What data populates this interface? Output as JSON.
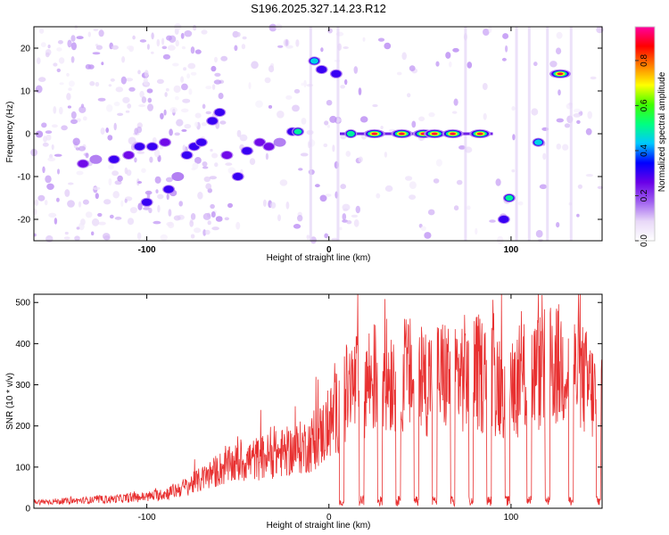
{
  "title": "S196.2025.327.14.23.R12",
  "chart_data": [
    {
      "type": "heatmap",
      "name": "spectrogram",
      "xlabel": "Height of straight line (km)",
      "ylabel": "Frequency (Hz)",
      "xlim": [
        -162,
        150
      ],
      "ylim": [
        -25,
        25
      ],
      "xticks": [
        -100,
        0,
        100
      ],
      "xtick_labels": [
        "-100",
        "0",
        "100"
      ],
      "yticks": [
        -20,
        -10,
        0,
        10,
        20
      ],
      "ytick_labels": [
        "-20",
        "-10",
        "0",
        "10",
        "20"
      ],
      "colorbar": {
        "label": "Normalized spectral amplitude",
        "range": [
          0.0,
          0.95
        ],
        "ticks": [
          0.0,
          0.2,
          0.4,
          0.6,
          0.8
        ],
        "tick_labels": [
          "0.0",
          "0.2",
          "0.4",
          "0.6",
          "0.8"
        ],
        "colormap": [
          "#ffffff",
          "#e8d8f8",
          "#a060f0",
          "#6a00e8",
          "#0000ff",
          "#00c8ff",
          "#00ff80",
          "#40ff00",
          "#ffff00",
          "#ff8000",
          "#ff0000",
          "#ff00a0"
        ]
      },
      "features": [
        {
          "x": -135,
          "y": -7,
          "v": 0.25
        },
        {
          "x": -128,
          "y": -6,
          "v": 0.2
        },
        {
          "x": -118,
          "y": -6,
          "v": 0.3
        },
        {
          "x": -110,
          "y": -5,
          "v": 0.25
        },
        {
          "x": -104,
          "y": -3,
          "v": 0.3
        },
        {
          "x": -97,
          "y": -3,
          "v": 0.3
        },
        {
          "x": -90,
          "y": -2,
          "v": 0.25
        },
        {
          "x": -100,
          "y": -16,
          "v": 0.3
        },
        {
          "x": -88,
          "y": -13,
          "v": 0.35
        },
        {
          "x": -83,
          "y": -10,
          "v": 0.2
        },
        {
          "x": -78,
          "y": -5,
          "v": 0.35
        },
        {
          "x": -74,
          "y": -3,
          "v": 0.35
        },
        {
          "x": -70,
          "y": -2,
          "v": 0.3
        },
        {
          "x": -64,
          "y": 3,
          "v": 0.35
        },
        {
          "x": -60,
          "y": 5,
          "v": 0.3
        },
        {
          "x": -56,
          "y": -5,
          "v": 0.25
        },
        {
          "x": -50,
          "y": -10,
          "v": 0.35
        },
        {
          "x": -45,
          "y": -4,
          "v": 0.3
        },
        {
          "x": -38,
          "y": -2,
          "v": 0.25
        },
        {
          "x": -33,
          "y": -3,
          "v": 0.25
        },
        {
          "x": -27,
          "y": -2,
          "v": 0.2
        },
        {
          "x": -20,
          "y": 0.5,
          "v": 0.4
        },
        {
          "x": -17,
          "y": 0.5,
          "v": 0.5
        },
        {
          "x": -8,
          "y": 17,
          "v": 0.45
        },
        {
          "x": -4,
          "y": 15,
          "v": 0.35
        },
        {
          "x": 4,
          "y": 14,
          "v": 0.4
        },
        {
          "x": 12,
          "y": 0,
          "v": 0.6
        },
        {
          "x": 25,
          "y": 0,
          "v": 0.95
        },
        {
          "x": 40,
          "y": 0,
          "v": 0.95
        },
        {
          "x": 52,
          "y": 0,
          "v": 0.95
        },
        {
          "x": 58,
          "y": 0,
          "v": 0.9
        },
        {
          "x": 68,
          "y": 0,
          "v": 0.95
        },
        {
          "x": 83,
          "y": 0,
          "v": 0.95
        },
        {
          "x": 96,
          "y": -20,
          "v": 0.3
        },
        {
          "x": 99,
          "y": -15,
          "v": 0.6
        },
        {
          "x": 115,
          "y": -2,
          "v": 0.45
        },
        {
          "x": 127,
          "y": 14,
          "v": 0.95
        }
      ]
    },
    {
      "type": "line",
      "name": "snr",
      "xlabel": "Height of straight line (km)",
      "ylabel": "SNR (10 * v/v)",
      "xlim": [
        -162,
        150
      ],
      "ylim": [
        0,
        520
      ],
      "xticks": [
        -100,
        0,
        100
      ],
      "xtick_labels": [
        "-100",
        "0",
        "100"
      ],
      "yticks": [
        0,
        100,
        200,
        300,
        400,
        500
      ],
      "ytick_labels": [
        "0",
        "100",
        "200",
        "300",
        "400",
        "500"
      ],
      "color": "#e83030",
      "x": [
        -162,
        -140,
        -120,
        -100,
        -90,
        -80,
        -70,
        -60,
        -50,
        -40,
        -30,
        -20,
        -10,
        -5,
        0,
        5,
        10,
        15,
        20,
        30,
        40,
        50,
        60,
        70,
        80,
        90,
        100,
        110,
        120,
        130,
        140,
        150
      ],
      "y": [
        15,
        18,
        22,
        28,
        35,
        50,
        70,
        95,
        110,
        120,
        130,
        140,
        155,
        175,
        200,
        240,
        280,
        300,
        310,
        320,
        330,
        310,
        320,
        325,
        330,
        315,
        300,
        320,
        340,
        350,
        310,
        250
      ],
      "dropouts": [
        7,
        18,
        28,
        38,
        48,
        58,
        68,
        78,
        88,
        98,
        110,
        120,
        133,
        148
      ]
    }
  ]
}
